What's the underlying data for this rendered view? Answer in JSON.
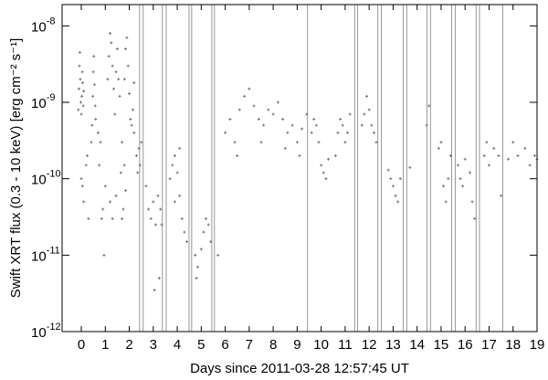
{
  "chart_data": {
    "type": "scatter",
    "x_label": "Days since 2011-03-28 12:57:45 UT",
    "y_label": "Swift XRT flux (0.3 - 10 keV) [erg cm⁻² s⁻¹]",
    "log_y": true,
    "xlim": [
      -0.8,
      19
    ],
    "ylim": [
      1e-12,
      1.9e-08
    ],
    "xticks": [
      0,
      1,
      2,
      3,
      4,
      5,
      6,
      7,
      8,
      9,
      10,
      11,
      12,
      13,
      14,
      15,
      16,
      17,
      18,
      19
    ],
    "yticks": [
      {
        "value": 1e-12,
        "label": "10",
        "exponent": "-12"
      },
      {
        "value": 1e-11,
        "label": "10",
        "exponent": "-11"
      },
      {
        "value": 1e-10,
        "label": "10",
        "exponent": "-10"
      },
      {
        "value": 1e-09,
        "label": "10",
        "exponent": "-9"
      },
      {
        "value": 1e-08,
        "label": "10",
        "exponent": "-8"
      }
    ],
    "vlines": [
      2.43,
      2.58,
      3.38,
      3.54,
      4.49,
      4.6,
      5.44,
      5.55,
      9.43,
      11.4,
      11.52,
      12.36,
      12.51,
      13.42,
      13.57,
      14.41,
      14.56,
      15.44,
      15.59,
      16.46,
      16.6,
      17.57
    ],
    "vline_color": "#999999",
    "series": [
      {
        "color": "#777777",
        "x": [
          -0.12,
          -0.1,
          -0.08,
          -0.06,
          -0.04,
          -0.02,
          0,
          0.02,
          0.04,
          0.06,
          0.08,
          0.1,
          0.0,
          0.05,
          0.1,
          0.2,
          0.25,
          0.3,
          0.42,
          0.45,
          0.48,
          0.5,
          0.52,
          0.55,
          0.58,
          0.6,
          0.7,
          0.75,
          0.8,
          0.85,
          0.9,
          0.95,
          1.0,
          1.1,
          1.15,
          1.2,
          1.25,
          1.3,
          1.35,
          1.4,
          1.45,
          1.5,
          1.55,
          1.6,
          1.2,
          1.3,
          1.45,
          1.7,
          1.65,
          1.8,
          1.85,
          1.9,
          1.95,
          2.0,
          2.05,
          1.8,
          1.85,
          1.75,
          1.7,
          2.1,
          2.15,
          2.2,
          2.3,
          2.35,
          2.4,
          2.45,
          2.2,
          2.5,
          2.7,
          2.8,
          2.9,
          3.0,
          3.05,
          3.1,
          3.2,
          3.25,
          3.3,
          3.35,
          3.7,
          3.8,
          3.9,
          4.0,
          4.1,
          4.2,
          4.3,
          4.4,
          3.9,
          4.1,
          4.75,
          4.85,
          5.0,
          5.1,
          5.2,
          5.3,
          5.4,
          4.8,
          5.7,
          6.0,
          6.2,
          6.4,
          6.6,
          6.8,
          7.0,
          7.2,
          7.4,
          7.6,
          7.8,
          8.0,
          8.2,
          8.4,
          8.6,
          8.8,
          9.0,
          9.2,
          9.4,
          6.5,
          7.5,
          8.5,
          9.1,
          9.6,
          9.7,
          9.8,
          9.9,
          10.0,
          10.1,
          10.2,
          10.3,
          10.6,
          10.7,
          10.8,
          10.9,
          11.0,
          11.1,
          11.2,
          11.7,
          11.8,
          11.9,
          12.0,
          12.1,
          12.2,
          12.3,
          12.9,
          13.0,
          13.1,
          13.2,
          13.3,
          12.8,
          13.7,
          14.4,
          14.5,
          14.9,
          15.0,
          15.1,
          15.2,
          15.3,
          15.4,
          15.7,
          15.8,
          15.9,
          16.0,
          16.2,
          16.3,
          16.4,
          16.8,
          16.9,
          17.0,
          17.2,
          17.4,
          17.5,
          17.8,
          18.0,
          18.2,
          18.5,
          18.7,
          18.9,
          19.0
        ],
        "values": [
          8e-10,
          1.5e-09,
          3e-09,
          4.5e-09,
          2e-09,
          1e-09,
          7e-10,
          1.2e-09,
          2.5e-09,
          1.8e-09,
          9e-10,
          1.4e-09,
          1e-10,
          8e-11,
          5e-11,
          1.5e-10,
          2e-10,
          3e-11,
          3e-10,
          5e-10,
          1.2e-09,
          2.5e-09,
          4e-09,
          1.7e-09,
          9e-10,
          6e-10,
          4e-10,
          1.5e-10,
          3e-10,
          3e-11,
          4e-11,
          1e-11,
          8e-11,
          2e-09,
          4e-09,
          8e-09,
          6e-09,
          3e-09,
          1.5e-09,
          7e-10,
          2.5e-09,
          5e-09,
          2e-09,
          1.2e-09,
          5e-11,
          3e-11,
          6e-11,
          3e-10,
          1.2e-10,
          2e-09,
          5e-09,
          7e-09,
          3e-09,
          1.3e-09,
          6e-10,
          1.5e-10,
          7e-11,
          4e-11,
          3e-11,
          5e-10,
          8e-10,
          4e-10,
          2e-10,
          1.2e-10,
          2.5e-10,
          1.5e-10,
          1.8e-09,
          3e-10,
          8e-11,
          4e-11,
          3e-11,
          5e-11,
          3.5e-12,
          2.5e-11,
          6e-11,
          5e-12,
          4e-11,
          2.5e-11,
          1e-10,
          1.5e-10,
          2e-10,
          1.2e-10,
          6e-11,
          3e-11,
          2e-11,
          1.5e-11,
          5e-11,
          2.5e-10,
          1e-11,
          7e-12,
          1.2e-11,
          2e-11,
          3e-11,
          2.5e-11,
          1.5e-11,
          5e-12,
          1e-11,
          4e-10,
          6e-10,
          3e-10,
          8e-10,
          1.2e-09,
          1.5e-09,
          9e-10,
          6e-10,
          5e-10,
          8e-10,
          7e-10,
          1e-09,
          6e-10,
          4e-10,
          5e-10,
          3e-10,
          4.5e-10,
          7e-10,
          2e-10,
          3e-10,
          2.5e-10,
          2e-10,
          4e-10,
          6e-10,
          5e-10,
          3e-10,
          1.5e-10,
          1.2e-10,
          1e-10,
          1.8e-10,
          2e-10,
          4e-10,
          6e-10,
          5e-10,
          3e-10,
          4e-10,
          7e-10,
          5e-10,
          7e-10,
          1.2e-09,
          8e-10,
          5e-10,
          4e-10,
          3e-10,
          1e-10,
          8e-11,
          6e-11,
          5e-11,
          1e-10,
          1.3e-10,
          1.4e-10,
          5e-10,
          9e-10,
          2.5e-10,
          3e-10,
          8e-11,
          5e-11,
          1e-10,
          2e-10,
          1.5e-10,
          1e-10,
          8e-11,
          1.8e-10,
          1.2e-10,
          5e-11,
          3e-11,
          2e-10,
          3e-10,
          1.5e-10,
          2.5e-10,
          2e-10,
          6e-11,
          1.8e-10,
          3e-10,
          2e-10,
          2.5e-10,
          1.5e-10,
          2e-10,
          1.8e-10
        ]
      }
    ]
  }
}
